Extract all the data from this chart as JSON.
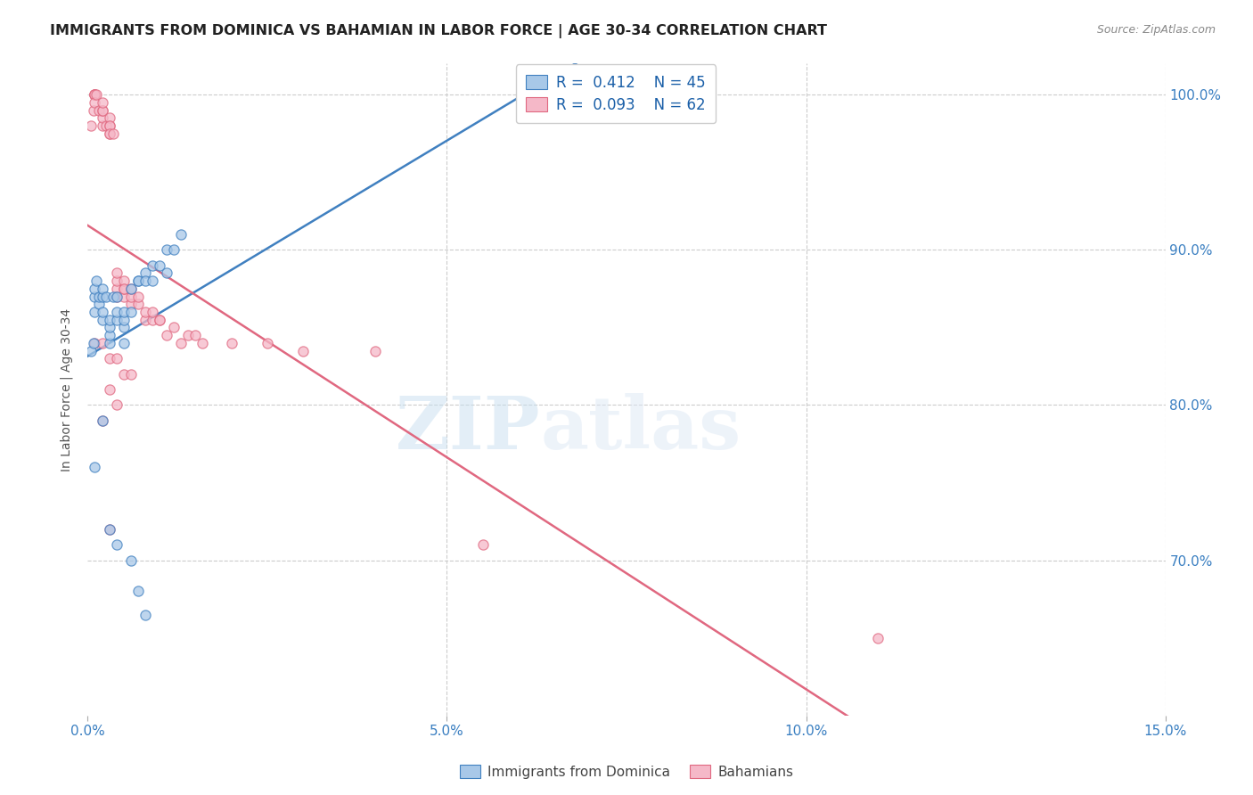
{
  "title": "IMMIGRANTS FROM DOMINICA VS BAHAMIAN IN LABOR FORCE | AGE 30-34 CORRELATION CHART",
  "source": "Source: ZipAtlas.com",
  "ylabel": "In Labor Force | Age 30-34",
  "xlim": [
    0.0,
    0.15
  ],
  "ylim": [
    0.6,
    1.02
  ],
  "xticks": [
    0.0,
    0.05,
    0.1,
    0.15
  ],
  "xtick_labels": [
    "0.0%",
    "5.0%",
    "10.0%",
    "15.0%"
  ],
  "yticks": [
    0.7,
    0.8,
    0.9,
    1.0
  ],
  "ytick_labels": [
    "70.0%",
    "80.0%",
    "90.0%",
    "100.0%"
  ],
  "legend_r1": "R = 0.412",
  "legend_n1": "N = 45",
  "legend_r2": "R = 0.093",
  "legend_n2": "N = 62",
  "color_blue": "#a8c8e8",
  "color_pink": "#f5b8c8",
  "line_color_blue": "#4080c0",
  "line_color_pink": "#e06880",
  "watermark_zip": "ZIP",
  "watermark_atlas": "atlas",
  "dominica_x": [
    0.0005,
    0.0008,
    0.001,
    0.001,
    0.001,
    0.0012,
    0.0015,
    0.0015,
    0.002,
    0.002,
    0.002,
    0.002,
    0.0025,
    0.003,
    0.003,
    0.003,
    0.003,
    0.0035,
    0.004,
    0.004,
    0.004,
    0.005,
    0.005,
    0.005,
    0.005,
    0.006,
    0.006,
    0.007,
    0.007,
    0.008,
    0.008,
    0.009,
    0.009,
    0.01,
    0.011,
    0.011,
    0.012,
    0.013,
    0.001,
    0.002,
    0.003,
    0.004,
    0.006,
    0.007,
    0.008
  ],
  "dominica_y": [
    0.835,
    0.84,
    0.86,
    0.87,
    0.875,
    0.88,
    0.865,
    0.87,
    0.855,
    0.86,
    0.87,
    0.875,
    0.87,
    0.84,
    0.845,
    0.85,
    0.855,
    0.87,
    0.855,
    0.86,
    0.87,
    0.84,
    0.85,
    0.855,
    0.86,
    0.86,
    0.875,
    0.88,
    0.88,
    0.885,
    0.88,
    0.88,
    0.89,
    0.89,
    0.885,
    0.9,
    0.9,
    0.91,
    0.76,
    0.79,
    0.72,
    0.71,
    0.7,
    0.68,
    0.665
  ],
  "bahamian_x": [
    0.0005,
    0.0008,
    0.001,
    0.001,
    0.001,
    0.001,
    0.001,
    0.0012,
    0.0015,
    0.002,
    0.002,
    0.002,
    0.002,
    0.002,
    0.0025,
    0.003,
    0.003,
    0.003,
    0.003,
    0.003,
    0.0035,
    0.004,
    0.004,
    0.004,
    0.004,
    0.005,
    0.005,
    0.005,
    0.005,
    0.006,
    0.006,
    0.006,
    0.007,
    0.007,
    0.008,
    0.008,
    0.009,
    0.009,
    0.01,
    0.01,
    0.011,
    0.012,
    0.013,
    0.014,
    0.015,
    0.016,
    0.02,
    0.025,
    0.03,
    0.04,
    0.055,
    0.001,
    0.002,
    0.003,
    0.004,
    0.005,
    0.006,
    0.003,
    0.004,
    0.002,
    0.11,
    0.003
  ],
  "bahamian_y": [
    0.98,
    0.99,
    1.0,
    1.0,
    1.0,
    1.0,
    0.995,
    1.0,
    0.99,
    0.98,
    0.985,
    0.99,
    0.99,
    0.995,
    0.98,
    0.975,
    0.98,
    0.985,
    0.98,
    0.975,
    0.975,
    0.875,
    0.88,
    0.885,
    0.87,
    0.87,
    0.875,
    0.88,
    0.875,
    0.865,
    0.87,
    0.875,
    0.865,
    0.87,
    0.855,
    0.86,
    0.855,
    0.86,
    0.855,
    0.855,
    0.845,
    0.85,
    0.84,
    0.845,
    0.845,
    0.84,
    0.84,
    0.84,
    0.835,
    0.835,
    0.71,
    0.84,
    0.84,
    0.83,
    0.83,
    0.82,
    0.82,
    0.81,
    0.8,
    0.79,
    0.65,
    0.72
  ]
}
